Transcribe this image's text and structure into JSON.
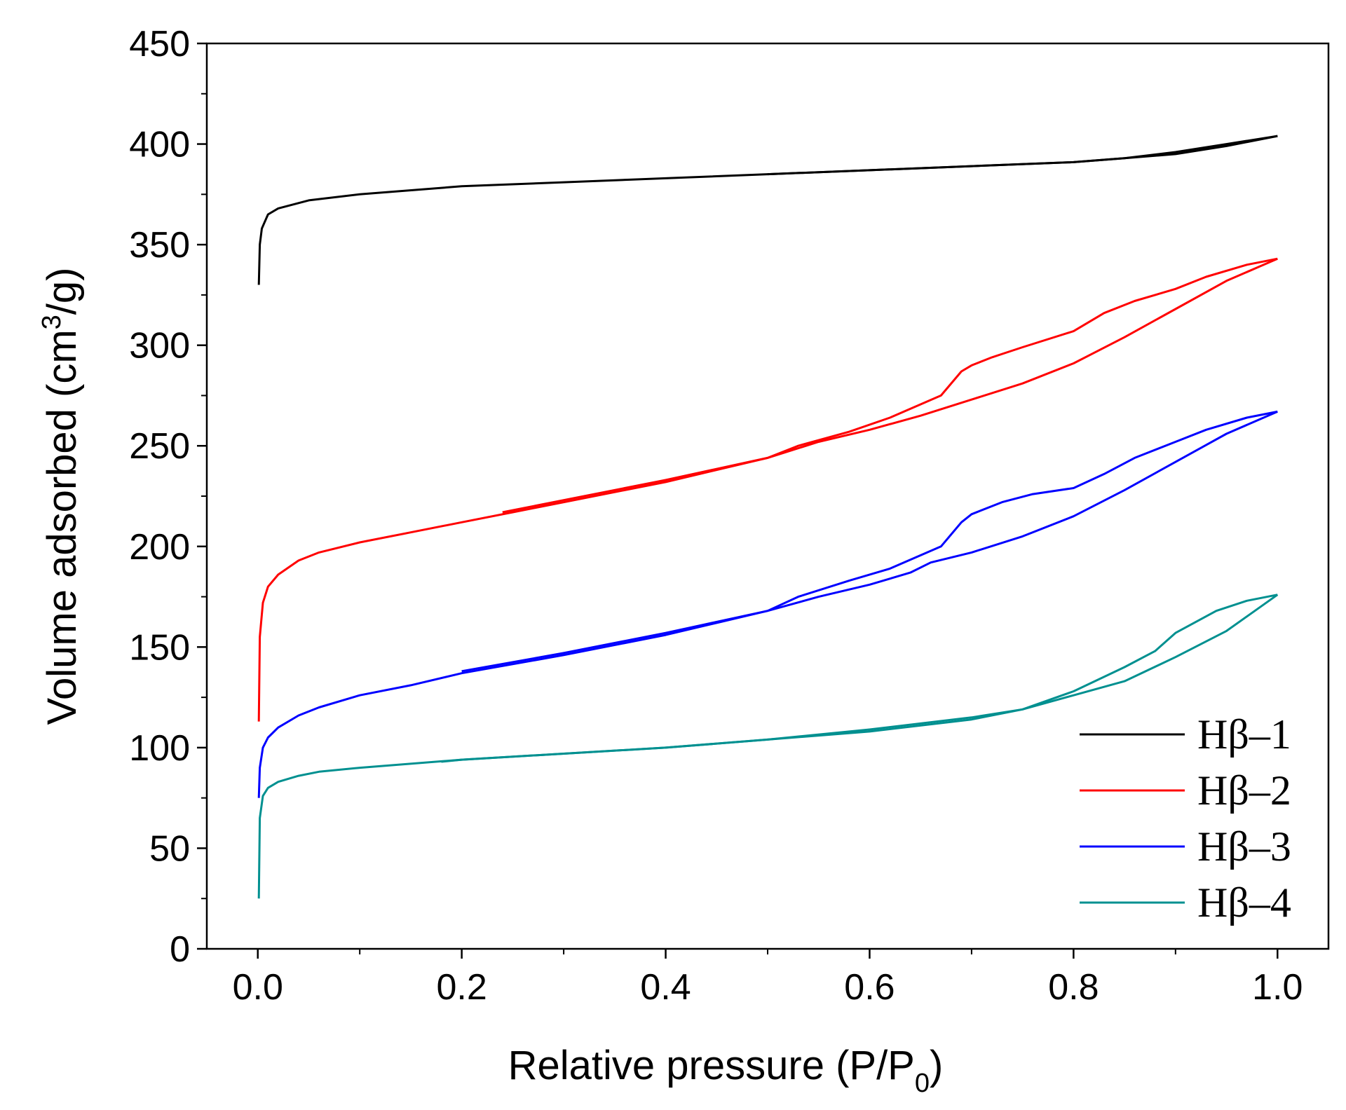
{
  "chart_data": {
    "type": "line",
    "title": "",
    "xlabel": "Relative pressure   (P/P0)",
    "xlabel_main": "Relative pressure   (P/P",
    "xlabel_sub": "0",
    "xlabel_close": ")",
    "ylabel": "Volume adsorbed (cm3/g)",
    "ylabel_main": "Volume adsorbed (cm",
    "ylabel_sup": "3",
    "ylabel_close": "/g)",
    "xlim": [
      -0.05,
      1.05
    ],
    "ylim": [
      0,
      450
    ],
    "xticks": [
      0.0,
      0.2,
      0.4,
      0.6,
      0.8,
      1.0
    ],
    "xtick_labels": [
      "0.0",
      "0.2",
      "0.4",
      "0.6",
      "0.8",
      "1.0"
    ],
    "yticks": [
      0,
      50,
      100,
      150,
      200,
      250,
      300,
      350,
      400,
      450
    ],
    "ytick_labels": [
      "0",
      "50",
      "100",
      "150",
      "200",
      "250",
      "300",
      "350",
      "400",
      "450"
    ],
    "grid": false,
    "legend_position": "bottom-right",
    "series": [
      {
        "name": "Hβ–1",
        "color": "#000000",
        "adsorption": [
          [
            0.001,
            330
          ],
          [
            0.002,
            350
          ],
          [
            0.004,
            358
          ],
          [
            0.01,
            365
          ],
          [
            0.02,
            368
          ],
          [
            0.05,
            372
          ],
          [
            0.1,
            375
          ],
          [
            0.2,
            379
          ],
          [
            0.3,
            381
          ],
          [
            0.4,
            383
          ],
          [
            0.5,
            385
          ],
          [
            0.6,
            387
          ],
          [
            0.7,
            389
          ],
          [
            0.8,
            391
          ],
          [
            0.85,
            393
          ],
          [
            0.9,
            395
          ],
          [
            0.95,
            399
          ],
          [
            1.0,
            404
          ]
        ],
        "desorption": [
          [
            1.0,
            404
          ],
          [
            0.95,
            400
          ],
          [
            0.9,
            396
          ],
          [
            0.85,
            393
          ],
          [
            0.8,
            391
          ],
          [
            0.7,
            389
          ],
          [
            0.6,
            387
          ],
          [
            0.5,
            385
          ]
        ]
      },
      {
        "name": "Hβ–2",
        "color": "#ff0000",
        "adsorption": [
          [
            0.001,
            113
          ],
          [
            0.002,
            155
          ],
          [
            0.005,
            172
          ],
          [
            0.01,
            180
          ],
          [
            0.02,
            186
          ],
          [
            0.04,
            193
          ],
          [
            0.06,
            197
          ],
          [
            0.1,
            202
          ],
          [
            0.15,
            207
          ],
          [
            0.2,
            212
          ],
          [
            0.25,
            217
          ],
          [
            0.3,
            222
          ],
          [
            0.4,
            232
          ],
          [
            0.5,
            244
          ],
          [
            0.55,
            252
          ],
          [
            0.6,
            258
          ],
          [
            0.65,
            265
          ],
          [
            0.7,
            273
          ],
          [
            0.75,
            281
          ],
          [
            0.8,
            291
          ],
          [
            0.85,
            304
          ],
          [
            0.9,
            318
          ],
          [
            0.95,
            332
          ],
          [
            1.0,
            343
          ]
        ],
        "desorption": [
          [
            1.0,
            343
          ],
          [
            0.97,
            340
          ],
          [
            0.93,
            334
          ],
          [
            0.9,
            328
          ],
          [
            0.86,
            322
          ],
          [
            0.83,
            316
          ],
          [
            0.8,
            307
          ],
          [
            0.75,
            299
          ],
          [
            0.72,
            294
          ],
          [
            0.7,
            290
          ],
          [
            0.69,
            287
          ],
          [
            0.67,
            275
          ],
          [
            0.62,
            264
          ],
          [
            0.58,
            257
          ],
          [
            0.53,
            250
          ],
          [
            0.5,
            244
          ],
          [
            0.4,
            233
          ],
          [
            0.3,
            223
          ],
          [
            0.24,
            217
          ]
        ]
      },
      {
        "name": "Hβ–3",
        "color": "#0000ff",
        "adsorption": [
          [
            0.001,
            75
          ],
          [
            0.002,
            90
          ],
          [
            0.005,
            100
          ],
          [
            0.01,
            105
          ],
          [
            0.02,
            110
          ],
          [
            0.04,
            116
          ],
          [
            0.06,
            120
          ],
          [
            0.1,
            126
          ],
          [
            0.15,
            131
          ],
          [
            0.2,
            137
          ],
          [
            0.3,
            146
          ],
          [
            0.4,
            156
          ],
          [
            0.5,
            168
          ],
          [
            0.55,
            175
          ],
          [
            0.6,
            181
          ],
          [
            0.64,
            187
          ],
          [
            0.66,
            192
          ],
          [
            0.7,
            197
          ],
          [
            0.75,
            205
          ],
          [
            0.8,
            215
          ],
          [
            0.85,
            228
          ],
          [
            0.9,
            242
          ],
          [
            0.95,
            256
          ],
          [
            1.0,
            267
          ]
        ],
        "desorption": [
          [
            1.0,
            267
          ],
          [
            0.97,
            264
          ],
          [
            0.93,
            258
          ],
          [
            0.9,
            252
          ],
          [
            0.86,
            244
          ],
          [
            0.83,
            236
          ],
          [
            0.8,
            229
          ],
          [
            0.76,
            226
          ],
          [
            0.73,
            222
          ],
          [
            0.7,
            216
          ],
          [
            0.69,
            212
          ],
          [
            0.67,
            200
          ],
          [
            0.62,
            189
          ],
          [
            0.58,
            183
          ],
          [
            0.53,
            175
          ],
          [
            0.5,
            168
          ],
          [
            0.4,
            157
          ],
          [
            0.3,
            147
          ],
          [
            0.2,
            138
          ]
        ]
      },
      {
        "name": "Hβ–4",
        "color": "#009090",
        "adsorption": [
          [
            0.001,
            25
          ],
          [
            0.002,
            65
          ],
          [
            0.005,
            76
          ],
          [
            0.01,
            80
          ],
          [
            0.02,
            83
          ],
          [
            0.04,
            86
          ],
          [
            0.06,
            88
          ],
          [
            0.1,
            90
          ],
          [
            0.2,
            94
          ],
          [
            0.3,
            97
          ],
          [
            0.4,
            100
          ],
          [
            0.5,
            104
          ],
          [
            0.6,
            108
          ],
          [
            0.7,
            114
          ],
          [
            0.75,
            119
          ],
          [
            0.8,
            126
          ],
          [
            0.85,
            133
          ],
          [
            0.9,
            145
          ],
          [
            0.95,
            158
          ],
          [
            1.0,
            176
          ]
        ],
        "desorption": [
          [
            1.0,
            176
          ],
          [
            0.97,
            173
          ],
          [
            0.94,
            168
          ],
          [
            0.9,
            157
          ],
          [
            0.88,
            148
          ],
          [
            0.85,
            140
          ],
          [
            0.8,
            128
          ],
          [
            0.75,
            119
          ],
          [
            0.7,
            115
          ],
          [
            0.6,
            109
          ],
          [
            0.5,
            104
          ],
          [
            0.4,
            100
          ],
          [
            0.3,
            97
          ],
          [
            0.2,
            94
          ],
          [
            0.18,
            93
          ]
        ]
      }
    ]
  }
}
